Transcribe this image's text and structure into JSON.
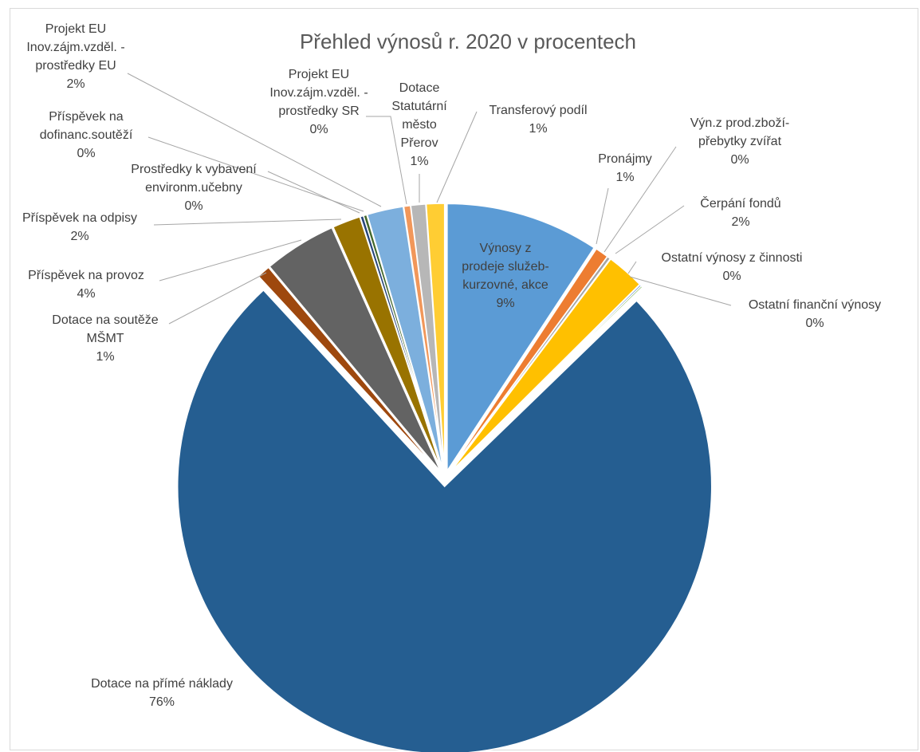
{
  "chart_data": {
    "type": "pie",
    "title": "Přehled výnosů r. 2020 v procentech",
    "series": [
      {
        "name": "",
        "slices": [
          {
            "label": "Výnosy z prodeje služeb-kurzovné, akce",
            "value_label": "9%",
            "value": 9.3,
            "color": "#5b9bd5"
          },
          {
            "label": "Pronájmy",
            "value_label": "1%",
            "value": 0.8,
            "color": "#ed7d31"
          },
          {
            "label": "Výn.z prod.zboží-přebytky zvířat",
            "value_label": "0%",
            "value": 0.2,
            "color": "#a5a5a5"
          },
          {
            "label": "Čerpání fondů",
            "value_label": "2%",
            "value": 2.3,
            "color": "#ffc000"
          },
          {
            "label": "Ostatní výnosy z činnosti",
            "value_label": "0%",
            "value": 0.1,
            "color": "#4472c4"
          },
          {
            "label": "Ostatní finanční výnosy",
            "value_label": "0%",
            "value": 0.1,
            "color": "#70ad47"
          },
          {
            "label": "Dotace na přímé náklady",
            "value_label": "76%",
            "value": 75.6,
            "color": "#255e91"
          },
          {
            "label": "Dotace na soutěže MŠMT",
            "value_label": "1%",
            "value": 0.8,
            "color": "#9e480e"
          },
          {
            "label": "Příspěvek na provoz",
            "value_label": "4%",
            "value": 4.4,
            "color": "#636363"
          },
          {
            "label": "Příspěvek na odpisy",
            "value_label": "2%",
            "value": 1.7,
            "color": "#997300"
          },
          {
            "label": "Prostředky k vybavení environm.učebny",
            "value_label": "0%",
            "value": 0.2,
            "color": "#264478"
          },
          {
            "label": "Příspěvek na dofinanc.soutěží",
            "value_label": "0%",
            "value": 0.2,
            "color": "#43682b"
          },
          {
            "label": "Projekt EU Inov.zájm.vzděl. - prostředky EU",
            "value_label": "2%",
            "value": 2.2,
            "color": "#7cafdd"
          },
          {
            "label": "Projekt EU Inov.zájm.vzděl. - prostředky SR",
            "value_label": "0%",
            "value": 0.4,
            "color": "#f1975a"
          },
          {
            "label": "Dotace Statutární město Přerov",
            "value_label": "1%",
            "value": 0.9,
            "color": "#b7b7b7"
          },
          {
            "label": "Transferový podíl",
            "value_label": "1%",
            "value": 1.1,
            "color": "#ffcd33"
          }
        ]
      }
    ],
    "legend": "none",
    "start_angle": "12 o'clock, clockwise",
    "exploded": true
  }
}
